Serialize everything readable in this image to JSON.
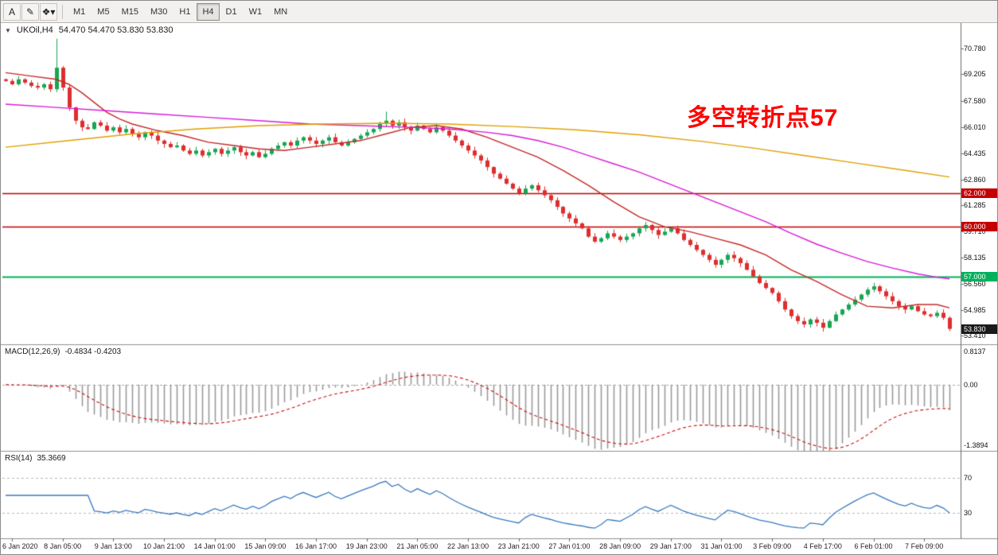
{
  "toolbar": {
    "tools": [
      {
        "label": "A"
      },
      {
        "label": "✎"
      },
      {
        "label": "❖▾"
      }
    ],
    "timeframes": [
      {
        "label": "M1"
      },
      {
        "label": "M5"
      },
      {
        "label": "M15"
      },
      {
        "label": "M30"
      },
      {
        "label": "H1"
      },
      {
        "label": "H4"
      },
      {
        "label": "D1"
      },
      {
        "label": "W1"
      },
      {
        "label": "MN"
      }
    ],
    "active_timeframe": "H4"
  },
  "chart": {
    "collapse_icon": "▼",
    "title": "UKOil,H4",
    "ohlc": "54.470 54.470 53.830 53.830",
    "annotation": {
      "text": "多空转折点57",
      "color": "#ff0000"
    },
    "hlines": [
      {
        "price": 62.0,
        "label": "62.000",
        "color": "#c40000"
      },
      {
        "price": 60.0,
        "label": "60.000",
        "color": "#c40000"
      },
      {
        "price": 57.0,
        "label": "57.000",
        "color": "#00b05c"
      }
    ],
    "current_price": {
      "price": 53.83,
      "label": "53.830",
      "bg": "#1a1a1a"
    },
    "price_axis": {
      "min": 52.9,
      "max": 72.2,
      "labels": [
        "70.780",
        "69.205",
        "67.580",
        "66.010",
        "64.435",
        "62.860",
        "61.285",
        "59.710",
        "58.135",
        "56.560",
        "54.985",
        "53.410"
      ]
    }
  },
  "macd": {
    "label": "MACD(12,26,9)",
    "values": "-0.4834 -0.4203",
    "axis_top": "0.8137",
    "axis_zero": "0.00",
    "axis_bottom": "-1.3894",
    "range": {
      "max": 0.8137,
      "min": -1.3894
    },
    "params": {
      "fast": 12,
      "slow": 26,
      "signal": 9
    }
  },
  "rsi": {
    "label": "RSI(14)",
    "value": "35.3669",
    "period": 14,
    "levels": [
      70,
      30
    ],
    "level_labels": [
      "70",
      "30"
    ],
    "range": {
      "min": 0,
      "max": 100
    }
  },
  "time_axis": {
    "labels": [
      "6 Jan 2020",
      "8 Jan 05:00",
      "9 Jan 13:00",
      "10 Jan 21:00",
      "14 Jan 01:00",
      "15 Jan 09:00",
      "16 Jan 17:00",
      "19 Jan 23:00",
      "21 Jan 05:00",
      "22 Jan 13:00",
      "23 Jan 21:00",
      "27 Jan 01:00",
      "28 Jan 09:00",
      "29 Jan 17:00",
      "31 Jan 01:00",
      "3 Feb 09:00",
      "4 Feb 17:00",
      "6 Feb 01:00",
      "7 Feb 09:00"
    ]
  },
  "chart_data": {
    "type": "candlestick",
    "symbol": "UKOil",
    "timeframe": "H4",
    "first_open": 68.9,
    "closes": [
      68.8,
      68.6,
      68.9,
      68.7,
      68.5,
      68.4,
      68.6,
      68.3,
      69.6,
      68.4,
      67.2,
      66.4,
      66.0,
      65.9,
      66.3,
      66.1,
      65.8,
      66.0,
      65.7,
      65.9,
      65.6,
      65.4,
      65.7,
      65.5,
      65.2,
      65.0,
      64.8,
      64.9,
      64.6,
      64.4,
      64.6,
      64.3,
      64.5,
      64.7,
      64.4,
      64.6,
      64.8,
      64.5,
      64.3,
      64.5,
      64.2,
      64.4,
      64.7,
      64.9,
      65.1,
      64.9,
      65.2,
      65.4,
      65.2,
      65.0,
      65.2,
      65.4,
      65.1,
      64.9,
      65.1,
      65.3,
      65.5,
      65.7,
      65.9,
      66.2,
      66.4,
      66.1,
      66.3,
      66.0,
      65.8,
      66.1,
      65.9,
      65.7,
      66.0,
      65.8,
      65.5,
      65.2,
      64.9,
      64.6,
      64.3,
      64.0,
      63.6,
      63.2,
      62.9,
      62.6,
      62.3,
      62.0,
      62.3,
      62.5,
      62.2,
      61.9,
      61.6,
      61.2,
      60.8,
      60.5,
      60.2,
      59.9,
      59.4,
      59.1,
      59.3,
      59.6,
      59.4,
      59.2,
      59.4,
      59.6,
      59.9,
      60.1,
      59.8,
      59.5,
      59.7,
      59.9,
      59.6,
      59.2,
      58.9,
      58.6,
      58.3,
      58.0,
      57.7,
      58.0,
      58.3,
      58.1,
      57.8,
      57.4,
      57.0,
      56.6,
      56.3,
      56.0,
      55.5,
      55.0,
      54.6,
      54.3,
      54.1,
      54.4,
      54.2,
      53.9,
      54.3,
      54.7,
      55.0,
      55.3,
      55.6,
      55.9,
      56.2,
      56.4,
      56.1,
      55.8,
      55.5,
      55.2,
      55.0,
      55.2,
      54.9,
      54.7,
      54.6,
      54.8,
      54.5,
      53.83
    ],
    "high_overrides": {
      "8": 71.35,
      "60": 66.95
    },
    "wick": {
      "base": 0.05,
      "var": 0.2
    },
    "label_bars": [
      1,
      9,
      17,
      25,
      33,
      41,
      49,
      57,
      65,
      73,
      81,
      89,
      97,
      105,
      113,
      121,
      129,
      137,
      145
    ],
    "colors": {
      "up": "#17a654",
      "down": "#de2e2e",
      "macd_hist": "#9a9a9a",
      "macd_signal": "#cc1111",
      "macd_zero": "#a8a8a8",
      "rsi_line": "#3a7abf",
      "rsi_level": "#b9b9b9",
      "axis": "#6a6a6a"
    },
    "ma": [
      {
        "name": "fast",
        "color": "#c62828",
        "points": [
          [
            0,
            69.3
          ],
          [
            4,
            69.1
          ],
          [
            8,
            68.9
          ],
          [
            10,
            68.6
          ],
          [
            12,
            68.1
          ],
          [
            14,
            67.5
          ],
          [
            16,
            66.9
          ],
          [
            18,
            66.5
          ],
          [
            20,
            66.2
          ],
          [
            24,
            65.8
          ],
          [
            28,
            65.5
          ],
          [
            32,
            65.1
          ],
          [
            36,
            64.9
          ],
          [
            40,
            64.7
          ],
          [
            44,
            64.6
          ],
          [
            48,
            64.8
          ],
          [
            52,
            65.0
          ],
          [
            56,
            65.2
          ],
          [
            60,
            65.6
          ],
          [
            64,
            66.0
          ],
          [
            68,
            66.1
          ],
          [
            72,
            65.9
          ],
          [
            76,
            65.4
          ],
          [
            80,
            64.8
          ],
          [
            84,
            64.2
          ],
          [
            88,
            63.4
          ],
          [
            92,
            62.5
          ],
          [
            96,
            61.5
          ],
          [
            100,
            60.6
          ],
          [
            104,
            60.0
          ],
          [
            108,
            59.7
          ],
          [
            112,
            59.3
          ],
          [
            116,
            58.9
          ],
          [
            120,
            58.3
          ],
          [
            124,
            57.4
          ],
          [
            128,
            56.7
          ],
          [
            132,
            55.9
          ],
          [
            136,
            55.2
          ],
          [
            140,
            55.1
          ],
          [
            144,
            55.3
          ],
          [
            147,
            55.3
          ],
          [
            149,
            55.1
          ]
        ]
      },
      {
        "name": "medium",
        "color": "#d81bd8",
        "points": [
          [
            0,
            67.4
          ],
          [
            8,
            67.2
          ],
          [
            16,
            67.0
          ],
          [
            24,
            66.8
          ],
          [
            32,
            66.6
          ],
          [
            40,
            66.4
          ],
          [
            48,
            66.2
          ],
          [
            56,
            66.1
          ],
          [
            64,
            66.0
          ],
          [
            70,
            65.9
          ],
          [
            76,
            65.7
          ],
          [
            80,
            65.5
          ],
          [
            84,
            65.2
          ],
          [
            88,
            64.8
          ],
          [
            92,
            64.3
          ],
          [
            96,
            63.8
          ],
          [
            100,
            63.3
          ],
          [
            104,
            62.7
          ],
          [
            108,
            62.1
          ],
          [
            112,
            61.5
          ],
          [
            116,
            60.9
          ],
          [
            120,
            60.3
          ],
          [
            124,
            59.6
          ],
          [
            128,
            58.95
          ],
          [
            132,
            58.4
          ],
          [
            136,
            57.9
          ],
          [
            140,
            57.5
          ],
          [
            144,
            57.15
          ],
          [
            147,
            56.95
          ],
          [
            149,
            56.85
          ]
        ]
      },
      {
        "name": "slow",
        "color": "#e0a000",
        "points": [
          [
            0,
            64.8
          ],
          [
            10,
            65.2
          ],
          [
            20,
            65.6
          ],
          [
            30,
            65.9
          ],
          [
            40,
            66.1
          ],
          [
            50,
            66.2
          ],
          [
            60,
            66.25
          ],
          [
            70,
            66.2
          ],
          [
            80,
            66.05
          ],
          [
            90,
            65.85
          ],
          [
            100,
            65.55
          ],
          [
            110,
            65.15
          ],
          [
            118,
            64.75
          ],
          [
            126,
            64.3
          ],
          [
            134,
            63.85
          ],
          [
            142,
            63.4
          ],
          [
            149,
            63.0
          ]
        ]
      }
    ]
  }
}
